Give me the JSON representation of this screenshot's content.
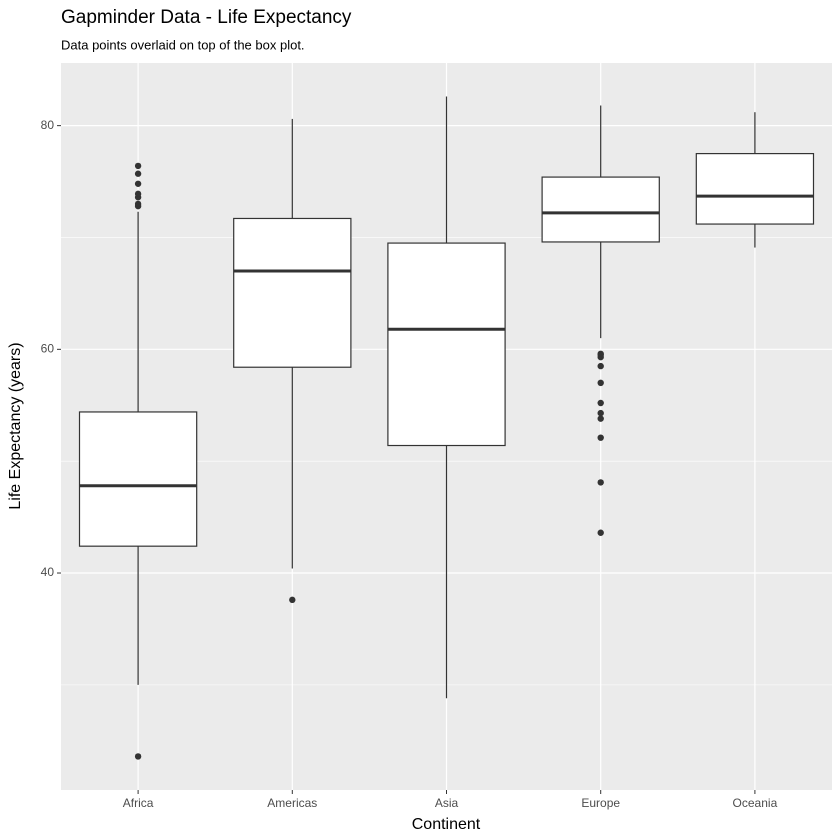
{
  "chart_data": {
    "type": "box",
    "title": "Gapminder Data - Life Expectancy",
    "subtitle": "Data points overlaid on top of the box plot.",
    "x_label": "Continent",
    "y_label": "Life Expectancy (years)",
    "categories": [
      "Africa",
      "Americas",
      "Asia",
      "Europe",
      "Oceania"
    ],
    "boxes": [
      {
        "whisker_low": 30.0,
        "q1": 42.4,
        "median": 47.8,
        "q3": 54.4,
        "whisker_high": 72.3,
        "outliers": [
          23.6,
          72.8,
          73.0,
          73.6,
          73.9,
          74.8,
          75.7,
          76.4
        ]
      },
      {
        "whisker_low": 40.4,
        "q1": 58.4,
        "median": 67.0,
        "q3": 71.7,
        "whisker_high": 80.6,
        "outliers": [
          37.6
        ]
      },
      {
        "whisker_low": 28.8,
        "q1": 51.4,
        "median": 61.8,
        "q3": 69.5,
        "whisker_high": 82.6,
        "outliers": []
      },
      {
        "whisker_low": 61.0,
        "q1": 69.6,
        "median": 72.2,
        "q3": 75.4,
        "whisker_high": 81.8,
        "outliers": [
          43.6,
          48.1,
          52.1,
          53.8,
          54.3,
          55.2,
          57.0,
          58.5,
          59.3,
          59.5,
          59.6
        ]
      },
      {
        "whisker_low": 69.1,
        "q1": 71.2,
        "median": 73.7,
        "q3": 77.5,
        "whisker_high": 81.2,
        "outliers": []
      }
    ],
    "box_fill": "#ffffff",
    "box_stroke": "#333333",
    "outlier_color": "#333333",
    "ylim": [
      20.6,
      85.6
    ],
    "yticks": [
      40,
      60,
      80
    ],
    "yminor": [
      30,
      50,
      70
    ],
    "grid": true
  }
}
